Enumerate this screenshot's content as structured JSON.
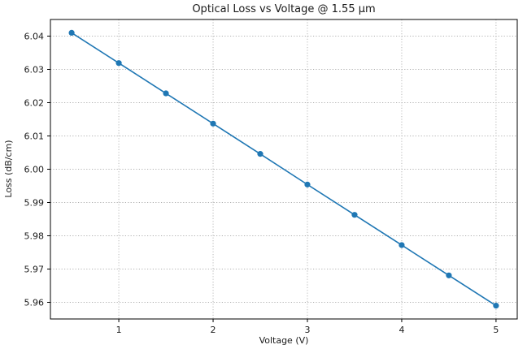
{
  "chart_data": {
    "type": "line",
    "title": "Optical Loss vs Voltage @ 1.55 μm",
    "xlabel": "Voltage (V)",
    "ylabel": "Loss (dB/cm)",
    "x": [
      0.5,
      1.0,
      1.5,
      2.0,
      2.5,
      3.0,
      3.5,
      4.0,
      4.5,
      5.0
    ],
    "y": [
      6.041,
      6.0319,
      6.0228,
      6.0137,
      6.0046,
      5.9954,
      5.9863,
      5.9772,
      5.9681,
      5.959
    ],
    "xlim": [
      0.275,
      5.225
    ],
    "ylim": [
      5.955,
      6.045
    ],
    "xticks": [
      {
        "v": 1,
        "label": "1"
      },
      {
        "v": 2,
        "label": "2"
      },
      {
        "v": 3,
        "label": "3"
      },
      {
        "v": 4,
        "label": "4"
      },
      {
        "v": 5,
        "label": "5"
      }
    ],
    "yticks": [
      {
        "v": 5.96,
        "label": "5.96"
      },
      {
        "v": 5.97,
        "label": "5.97"
      },
      {
        "v": 5.98,
        "label": "5.98"
      },
      {
        "v": 5.99,
        "label": "5.99"
      },
      {
        "v": 6.0,
        "label": "6.00"
      },
      {
        "v": 6.01,
        "label": "6.01"
      },
      {
        "v": 6.02,
        "label": "6.02"
      },
      {
        "v": 6.03,
        "label": "6.03"
      },
      {
        "v": 6.04,
        "label": "6.04"
      }
    ],
    "grid": true,
    "line_color": "#1f77b4",
    "marker": "circle",
    "grid_color": "#b0b0b0",
    "spine_color": "#000000",
    "legend": ""
  }
}
